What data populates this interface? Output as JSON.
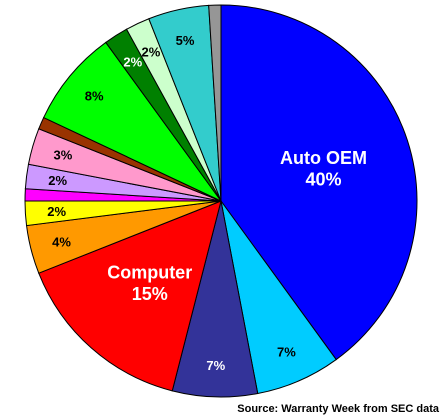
{
  "chart_data": {
    "type": "pie",
    "source": "Source: Warranty Week from SEC data",
    "categories": [
      "Auto OEM",
      null,
      null,
      "Computer",
      null,
      null,
      null,
      null,
      null,
      null,
      null,
      null,
      null,
      null,
      null
    ],
    "values": [
      40,
      7,
      7,
      15,
      4,
      2,
      1,
      2,
      3,
      1,
      8,
      2,
      2,
      5,
      1
    ],
    "value_labels": [
      "40%",
      "7%",
      "7%",
      "15%",
      "4%",
      "2%",
      null,
      "2%",
      "3%",
      null,
      "8%",
      "2%",
      "2%",
      "5%",
      null
    ],
    "colors": [
      "#0000ff",
      "#00ccff",
      "#333399",
      "#ff0000",
      "#ff9900",
      "#ffff00",
      "#ff00ff",
      "#cc99ff",
      "#ff99cc",
      "#993300",
      "#00ff00",
      "#008000",
      "#ccffcc",
      "#33cccc",
      "#969696"
    ]
  }
}
